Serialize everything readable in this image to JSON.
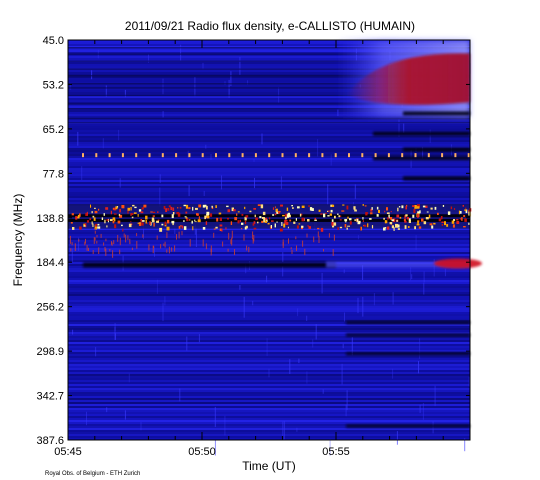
{
  "chart_data": {
    "type": "heatmap",
    "title": "2011/09/21  Radio flux density, e-CALLISTO (HUMAIN)",
    "xlabel": "Time (UT)",
    "ylabel": "Frequency (MHz)",
    "x_ticks": [
      {
        "label": "05:45",
        "minutes": 0
      },
      {
        "label": "05:50",
        "minutes": 5
      },
      {
        "label": "05:55",
        "minutes": 10
      }
    ],
    "x_range_minutes": [
      0,
      15
    ],
    "y_ticks": [
      "45.0",
      "53.2",
      "65.2",
      "77.8",
      "138.8",
      "184.4",
      "256.2",
      "298.9",
      "342.7",
      "387.6"
    ],
    "y_range_mhz": [
      45.0,
      387.6
    ],
    "colormap": [
      "#000000",
      "#1010b0",
      "#2b2bff",
      "#d01010",
      "#ffa500",
      "#ffffe0"
    ],
    "features": [
      {
        "kind": "rfi-band",
        "freq_mhz": 138.8,
        "intensity": 0.95
      },
      {
        "kind": "dark-band",
        "freq_mhz": 184.4,
        "intensity": -0.8
      },
      {
        "kind": "burst",
        "time_start_min": 10.5,
        "freq_start_mhz": 48,
        "freq_end_mhz": 60,
        "intensity": 0.7
      },
      {
        "kind": "burst",
        "time_start_min": 13,
        "freq_start_mhz": 180,
        "freq_end_mhz": 195,
        "intensity": 0.7
      }
    ],
    "grid": false,
    "legend": "none"
  },
  "footer": {
    "credit": "Royal Obs. of Belgium - ETH Zurich"
  }
}
